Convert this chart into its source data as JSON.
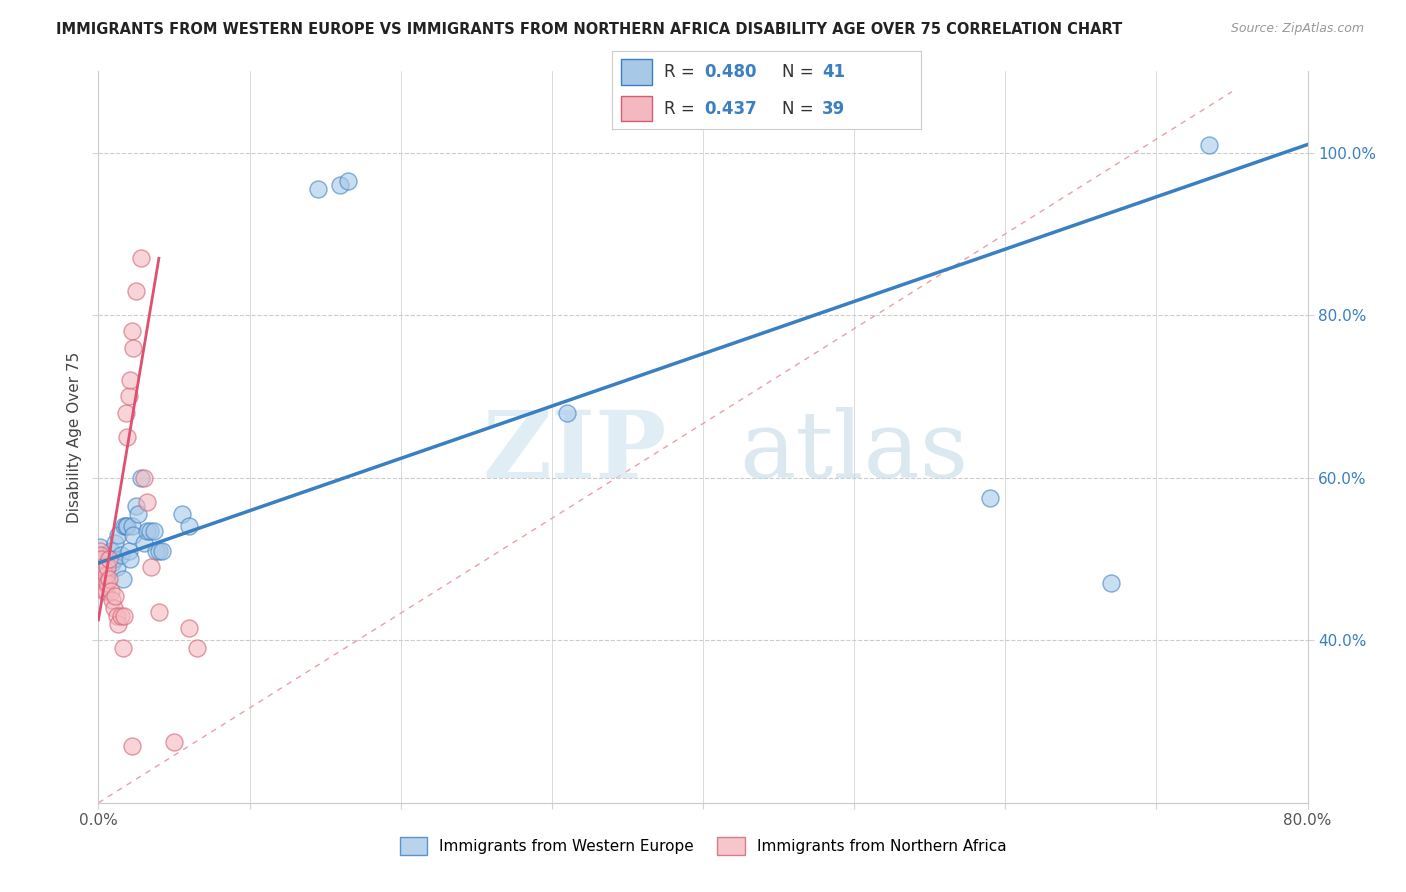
{
  "title": "IMMIGRANTS FROM WESTERN EUROPE VS IMMIGRANTS FROM NORTHERN AFRICA DISABILITY AGE OVER 75 CORRELATION CHART",
  "source": "Source: ZipAtlas.com",
  "ylabel": "Disability Age Over 75",
  "legend_label1": "Immigrants from Western Europe",
  "legend_label2": "Immigrants from Northern Africa",
  "R1": 0.48,
  "N1": 41,
  "R2": 0.437,
  "N2": 39,
  "color1": "#a8c8e8",
  "color2": "#f4b8c0",
  "color1_line": "#3a7fc1",
  "color2_line": "#e05070",
  "color1_edge": "#3a7fc1",
  "color2_edge": "#d06070",
  "watermark_zip": "ZIP",
  "watermark_atlas": "atlas",
  "xlim": [
    0.0,
    0.8
  ],
  "ylim_min": 0.2,
  "ylim_max": 1.1,
  "xticks": [
    0.0,
    0.1,
    0.2,
    0.3,
    0.4,
    0.5,
    0.6,
    0.7,
    0.8
  ],
  "ytick_positions": [
    0.4,
    0.6,
    0.8,
    1.0
  ],
  "ytick_labels": [
    "40.0%",
    "60.0%",
    "80.0%",
    "100.0%"
  ],
  "blue_points": [
    [
      0.001,
      0.515
    ],
    [
      0.002,
      0.49
    ],
    [
      0.003,
      0.5
    ],
    [
      0.004,
      0.505
    ],
    [
      0.005,
      0.48
    ],
    [
      0.006,
      0.49
    ],
    [
      0.007,
      0.5
    ],
    [
      0.008,
      0.51
    ],
    [
      0.009,
      0.495
    ],
    [
      0.01,
      0.5
    ],
    [
      0.011,
      0.52
    ],
    [
      0.012,
      0.49
    ],
    [
      0.013,
      0.53
    ],
    [
      0.015,
      0.505
    ],
    [
      0.016,
      0.475
    ],
    [
      0.017,
      0.54
    ],
    [
      0.018,
      0.54
    ],
    [
      0.019,
      0.54
    ],
    [
      0.02,
      0.51
    ],
    [
      0.021,
      0.5
    ],
    [
      0.022,
      0.54
    ],
    [
      0.023,
      0.53
    ],
    [
      0.025,
      0.565
    ],
    [
      0.026,
      0.555
    ],
    [
      0.028,
      0.6
    ],
    [
      0.03,
      0.52
    ],
    [
      0.032,
      0.535
    ],
    [
      0.034,
      0.535
    ],
    [
      0.037,
      0.535
    ],
    [
      0.038,
      0.51
    ],
    [
      0.04,
      0.51
    ],
    [
      0.042,
      0.51
    ],
    [
      0.055,
      0.555
    ],
    [
      0.06,
      0.54
    ],
    [
      0.145,
      0.955
    ],
    [
      0.16,
      0.96
    ],
    [
      0.165,
      0.965
    ],
    [
      0.31,
      0.68
    ],
    [
      0.59,
      0.575
    ],
    [
      0.67,
      0.47
    ],
    [
      0.735,
      1.01
    ]
  ],
  "pink_points": [
    [
      0.001,
      0.51
    ],
    [
      0.001,
      0.505
    ],
    [
      0.002,
      0.49
    ],
    [
      0.002,
      0.5
    ],
    [
      0.003,
      0.48
    ],
    [
      0.003,
      0.49
    ],
    [
      0.004,
      0.47
    ],
    [
      0.004,
      0.46
    ],
    [
      0.005,
      0.48
    ],
    [
      0.005,
      0.46
    ],
    [
      0.006,
      0.47
    ],
    [
      0.006,
      0.49
    ],
    [
      0.007,
      0.5
    ],
    [
      0.007,
      0.475
    ],
    [
      0.008,
      0.46
    ],
    [
      0.009,
      0.45
    ],
    [
      0.01,
      0.44
    ],
    [
      0.011,
      0.455
    ],
    [
      0.012,
      0.43
    ],
    [
      0.013,
      0.42
    ],
    [
      0.015,
      0.43
    ],
    [
      0.016,
      0.39
    ],
    [
      0.017,
      0.43
    ],
    [
      0.018,
      0.68
    ],
    [
      0.019,
      0.65
    ],
    [
      0.02,
      0.7
    ],
    [
      0.021,
      0.72
    ],
    [
      0.022,
      0.78
    ],
    [
      0.023,
      0.76
    ],
    [
      0.025,
      0.83
    ],
    [
      0.028,
      0.87
    ],
    [
      0.03,
      0.6
    ],
    [
      0.032,
      0.57
    ],
    [
      0.035,
      0.49
    ],
    [
      0.04,
      0.435
    ],
    [
      0.06,
      0.415
    ],
    [
      0.065,
      0.39
    ],
    [
      0.022,
      0.27
    ],
    [
      0.05,
      0.275
    ]
  ],
  "blue_line_x": [
    0.0,
    0.8
  ],
  "blue_line_y": [
    0.495,
    1.01
  ],
  "pink_line_x": [
    0.0,
    0.04
  ],
  "pink_line_y": [
    0.425,
    0.87
  ]
}
